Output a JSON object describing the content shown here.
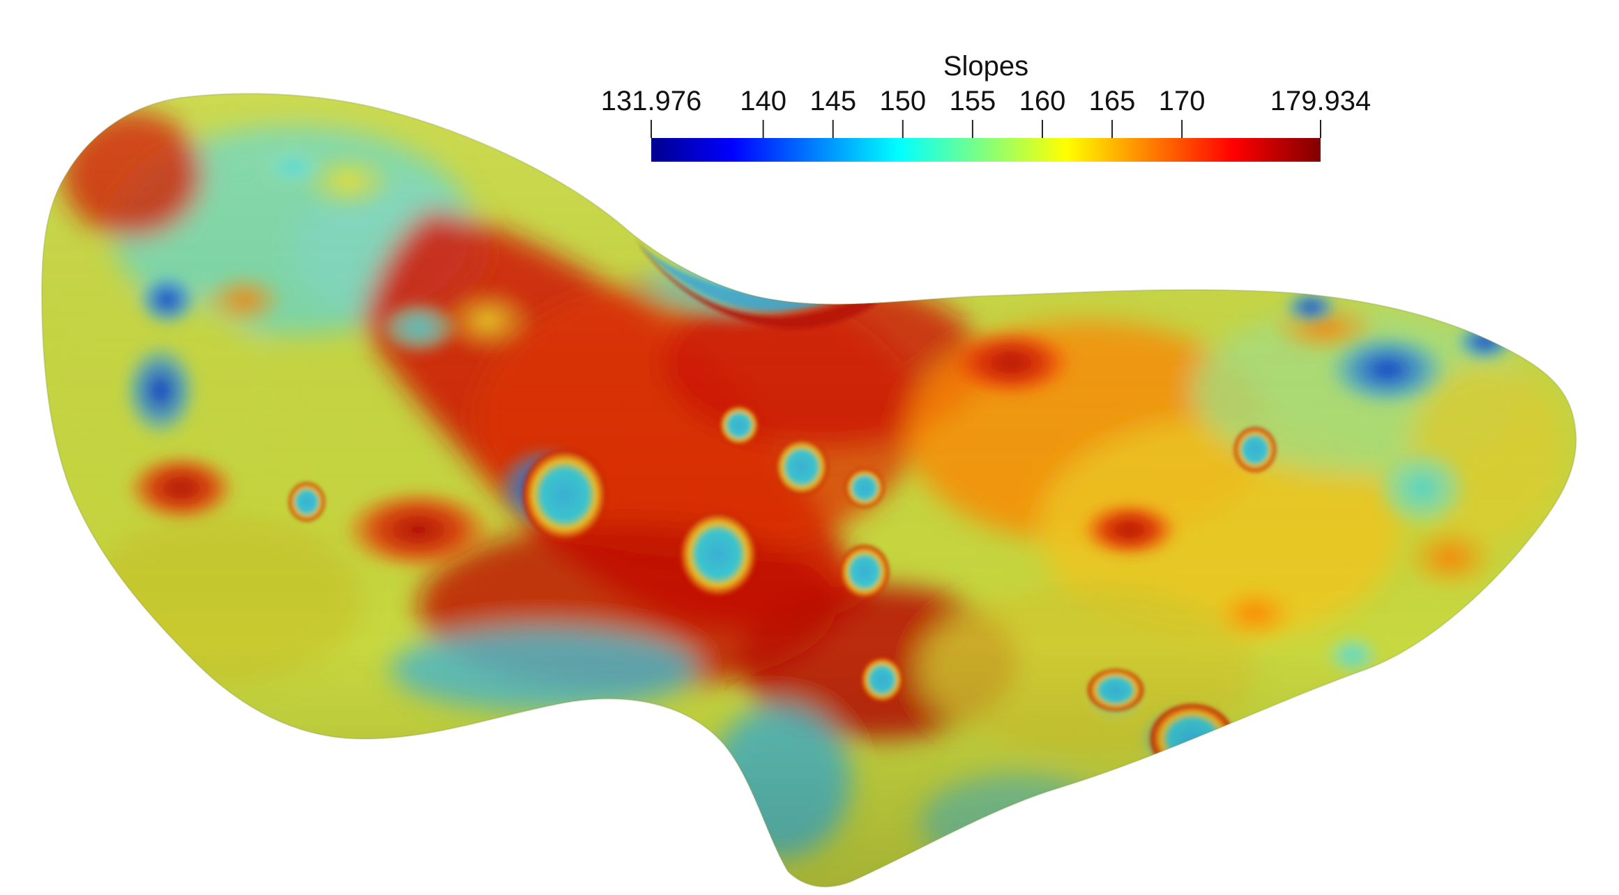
{
  "figure": {
    "subject": "asteroid-shape-model-colored-by-slope"
  },
  "colorbar": {
    "title": "Slopes",
    "min_label": "131.976",
    "max_label": "179.934",
    "min": 131.976,
    "max": 179.934,
    "ticks": [
      {
        "label": "131.976",
        "value": 131.976
      },
      {
        "label": "140",
        "value": 140
      },
      {
        "label": "145",
        "value": 145
      },
      {
        "label": "150",
        "value": 150
      },
      {
        "label": "155",
        "value": 155
      },
      {
        "label": "160",
        "value": 160
      },
      {
        "label": "165",
        "value": 165
      },
      {
        "label": "170",
        "value": 170
      },
      {
        "label": "179.934",
        "value": 179.934
      }
    ],
    "colormap": [
      {
        "pos": 0.0,
        "color": "#00008f"
      },
      {
        "pos": 0.12,
        "color": "#0000ff"
      },
      {
        "pos": 0.37,
        "color": "#00ffff"
      },
      {
        "pos": 0.62,
        "color": "#ffff00"
      },
      {
        "pos": 0.87,
        "color": "#ff0000"
      },
      {
        "pos": 1.0,
        "color": "#800000"
      }
    ]
  }
}
